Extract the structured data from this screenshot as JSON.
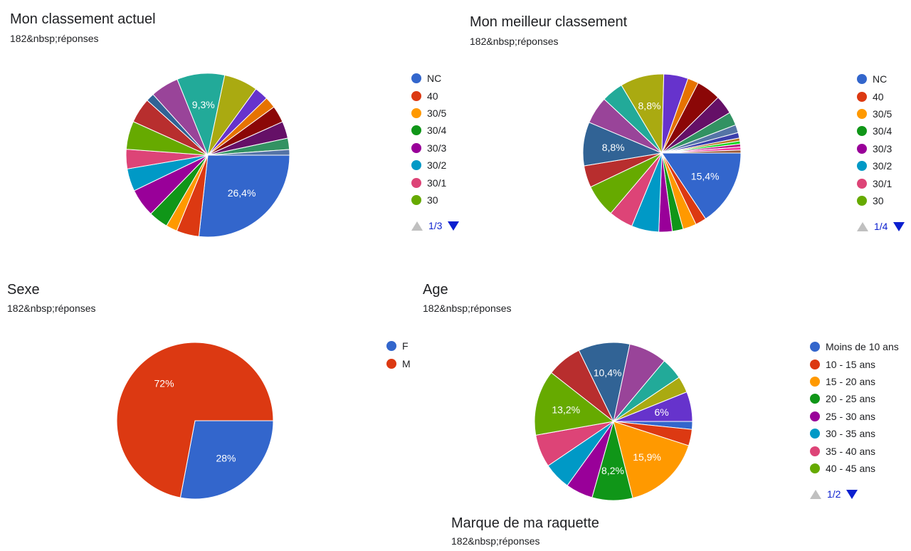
{
  "charts": [
    {
      "title": "Mon classement actuel",
      "subtitle": "182&nbsp;réponses",
      "legend": [
        "NC",
        "40",
        "30/5",
        "30/4",
        "30/3",
        "30/2",
        "30/1",
        "30"
      ],
      "pager": "1/3"
    },
    {
      "title": "Mon meilleur classement",
      "subtitle": "182&nbsp;réponses",
      "legend": [
        "NC",
        "40",
        "30/5",
        "30/4",
        "30/3",
        "30/2",
        "30/1",
        "30"
      ],
      "pager": "1/4"
    },
    {
      "title": "Sexe",
      "subtitle": "182&nbsp;réponses",
      "legend": [
        "F",
        "M"
      ]
    },
    {
      "title": "Age",
      "subtitle": "182&nbsp;réponses",
      "legend": [
        "Moins de 10 ans",
        "10 - 15 ans",
        "15 - 20 ans",
        "20 - 25 ans",
        "25 - 30 ans",
        "30 - 35 ans",
        "35 - 40 ans",
        "40 - 45 ans"
      ],
      "pager": "1/2"
    },
    {
      "title": "Marque de ma raquette",
      "subtitle": "182&nbsp;réponses"
    }
  ],
  "chart_data": [
    {
      "type": "pie",
      "title": "Mon classement actuel",
      "slices": [
        {
          "label": "NC",
          "value": 26.4,
          "color": "#3366cc",
          "shown": "26,4%"
        },
        {
          "label": "40",
          "value": 4.4,
          "color": "#dc3912"
        },
        {
          "label": "30/5",
          "value": 2.2,
          "color": "#ff9900"
        },
        {
          "label": "30/4",
          "value": 3.8,
          "color": "#109618"
        },
        {
          "label": "30/3",
          "value": 5.5,
          "color": "#990099"
        },
        {
          "label": "30/2",
          "value": 4.4,
          "color": "#0099c6"
        },
        {
          "label": "30/1",
          "value": 3.8,
          "color": "#dd4477"
        },
        {
          "label": "30",
          "value": 5.5,
          "color": "#66aa00"
        },
        {
          "label": "",
          "value": 4.9,
          "color": "#b82e2e"
        },
        {
          "label": "",
          "value": 1.6,
          "color": "#316395"
        },
        {
          "label": "",
          "value": 5.5,
          "color": "#994499"
        },
        {
          "label": "",
          "value": 9.3,
          "color": "#22aa99",
          "shown": "9,3%"
        },
        {
          "label": "",
          "value": 6.6,
          "color": "#aaaa11"
        },
        {
          "label": "",
          "value": 2.7,
          "color": "#6633cc"
        },
        {
          "label": "",
          "value": 2.2,
          "color": "#e67300"
        },
        {
          "label": "",
          "value": 3.3,
          "color": "#8b0707"
        },
        {
          "label": "",
          "value": 3.3,
          "color": "#651067"
        },
        {
          "label": "",
          "value": 2.2,
          "color": "#329262"
        },
        {
          "label": "",
          "value": 1.1,
          "color": "#5574a6"
        }
      ]
    },
    {
      "type": "pie",
      "title": "Mon meilleur classement",
      "slices": [
        {
          "label": "NC",
          "value": 15.4,
          "color": "#3366cc",
          "shown": "15,4%"
        },
        {
          "label": "40",
          "value": 2.2,
          "color": "#dc3912"
        },
        {
          "label": "30/5",
          "value": 2.7,
          "color": "#ff9900"
        },
        {
          "label": "30/4",
          "value": 2.2,
          "color": "#109618"
        },
        {
          "label": "30/3",
          "value": 2.7,
          "color": "#990099"
        },
        {
          "label": "30/2",
          "value": 5.5,
          "color": "#0099c6"
        },
        {
          "label": "30/1",
          "value": 4.9,
          "color": "#dd4477"
        },
        {
          "label": "30",
          "value": 6.6,
          "color": "#66aa00"
        },
        {
          "label": "",
          "value": 4.4,
          "color": "#b82e2e"
        },
        {
          "label": "",
          "value": 8.8,
          "color": "#316395",
          "shown": "8,8%"
        },
        {
          "label": "",
          "value": 5.5,
          "color": "#994499"
        },
        {
          "label": "",
          "value": 4.4,
          "color": "#22aa99"
        },
        {
          "label": "",
          "value": 8.8,
          "color": "#aaaa11",
          "shown": "8,8%"
        },
        {
          "label": "",
          "value": 4.9,
          "color": "#6633cc"
        },
        {
          "label": "",
          "value": 2.2,
          "color": "#e67300"
        },
        {
          "label": "",
          "value": 4.9,
          "color": "#8b0707"
        },
        {
          "label": "",
          "value": 3.8,
          "color": "#651067"
        },
        {
          "label": "",
          "value": 2.7,
          "color": "#329262"
        },
        {
          "label": "",
          "value": 1.6,
          "color": "#5574a6"
        },
        {
          "label": "",
          "value": 1.1,
          "color": "#3b3eac"
        },
        {
          "label": "",
          "value": 0.6,
          "color": "#b77322"
        },
        {
          "label": "",
          "value": 0.6,
          "color": "#16d620"
        },
        {
          "label": "",
          "value": 0.6,
          "color": "#b91383"
        },
        {
          "label": "",
          "value": 0.6,
          "color": "#f4359e"
        },
        {
          "label": "",
          "value": 0.6,
          "color": "#9c5935"
        }
      ]
    },
    {
      "type": "pie",
      "title": "Sexe",
      "slices": [
        {
          "label": "F",
          "value": 28,
          "color": "#3366cc",
          "shown": "28%"
        },
        {
          "label": "M",
          "value": 72,
          "color": "#dc3912",
          "shown": "72%"
        }
      ]
    },
    {
      "type": "pie",
      "title": "Age",
      "slices": [
        {
          "label": "Moins de 10 ans",
          "value": 1.6,
          "color": "#3366cc"
        },
        {
          "label": "10 - 15 ans",
          "value": 3.3,
          "color": "#dc3912"
        },
        {
          "label": "15 - 20 ans",
          "value": 15.9,
          "color": "#ff9900",
          "shown": "15,9%"
        },
        {
          "label": "20 - 25 ans",
          "value": 8.2,
          "color": "#109618",
          "shown": "8,2%"
        },
        {
          "label": "25 - 30 ans",
          "value": 5.5,
          "color": "#990099"
        },
        {
          "label": "30 - 35 ans",
          "value": 5.5,
          "color": "#0099c6"
        },
        {
          "label": "35 - 40 ans",
          "value": 6.6,
          "color": "#dd4477"
        },
        {
          "label": "40 - 45 ans",
          "value": 13.2,
          "color": "#66aa00",
          "shown": "13,2%"
        },
        {
          "label": "",
          "value": 7.1,
          "color": "#b82e2e"
        },
        {
          "label": "",
          "value": 10.4,
          "color": "#316395",
          "shown": "10,4%"
        },
        {
          "label": "",
          "value": 7.7,
          "color": "#994499"
        },
        {
          "label": "",
          "value": 4.4,
          "color": "#22aa99"
        },
        {
          "label": "",
          "value": 3.3,
          "color": "#aaaa11"
        },
        {
          "label": "",
          "value": 6.0,
          "color": "#6633cc",
          "shown": "6%"
        }
      ]
    }
  ]
}
